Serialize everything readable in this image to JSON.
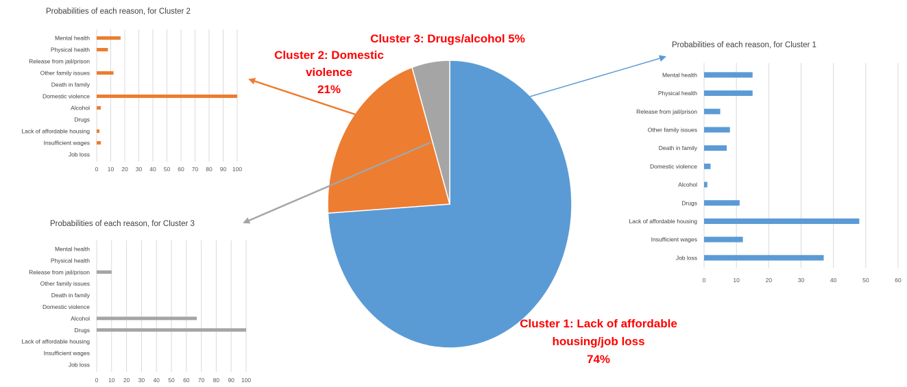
{
  "colors": {
    "cluster1": "#5b9bd5",
    "cluster2": "#ed7d31",
    "cluster3": "#a5a5a5",
    "annotation": "#ff0000",
    "grid": "#d9d9d9"
  },
  "labels": {
    "cluster3_pie": "Cluster 3: Drugs/alcohol 5%",
    "cluster2_pie": [
      "Cluster 2: Domestic",
      "violence",
      "21%"
    ],
    "cluster1_pie": [
      "Cluster 1: Lack of affordable",
      "housing/job loss",
      "74%"
    ]
  },
  "chart_data": [
    {
      "type": "pie",
      "categories": [
        "Cluster 1: Lack of affordable housing/job loss",
        "Cluster 2: Domestic violence",
        "Cluster 3: Drugs/alcohol"
      ],
      "values": [
        74,
        21,
        5
      ],
      "title": ""
    },
    {
      "type": "bar",
      "orientation": "horizontal",
      "title": "Probabilities of each reason, for Cluster 2",
      "categories": [
        "Mental health",
        "Physical health",
        "Release from jail/prison",
        "Other family issues",
        "Death in family",
        "Domestic violence",
        "Alcohol",
        "Drugs",
        "Lack of affordable housing",
        "Insufficient wages",
        "Job loss"
      ],
      "values": [
        17,
        8,
        0,
        12,
        0,
        100,
        3,
        0,
        2,
        3,
        0
      ],
      "xlim": [
        0,
        100
      ],
      "xticks": [
        "0",
        "10",
        "20",
        "30",
        "40",
        "50",
        "60",
        "70",
        "80",
        "90",
        "100"
      ]
    },
    {
      "type": "bar",
      "orientation": "horizontal",
      "title": "Probabilities of each reason, for Cluster 1",
      "categories": [
        "Mental health",
        "Physical health",
        "Release from jail/prison",
        "Other family issues",
        "Death in family",
        "Domestic violence",
        "Alcohol",
        "Drugs",
        "Lack of affordable housing",
        "Insufficient wages",
        "Job loss"
      ],
      "values": [
        15,
        15,
        5,
        8,
        7,
        2,
        1,
        11,
        48,
        12,
        37
      ],
      "xlim": [
        0,
        60
      ],
      "xticks": [
        "0",
        "10",
        "20",
        "30",
        "40",
        "50",
        "60"
      ]
    },
    {
      "type": "bar",
      "orientation": "horizontal",
      "title": "Probabilities of each reason, for Cluster 3",
      "categories": [
        "Mental health",
        "Physical health",
        "Release from jail/prison",
        "Other family issues",
        "Death in family",
        "Domestic violence",
        "Alcohol",
        "Drugs",
        "Lack of affordable housing",
        "Insufficient wages",
        "Job loss"
      ],
      "values": [
        0,
        0,
        10,
        0,
        0,
        0,
        67,
        100,
        0,
        0,
        0
      ],
      "xlim": [
        0,
        100
      ],
      "xticks": [
        "0",
        "10",
        "20",
        "30",
        "40",
        "50",
        "60",
        "70",
        "80",
        "90",
        "100"
      ]
    }
  ]
}
